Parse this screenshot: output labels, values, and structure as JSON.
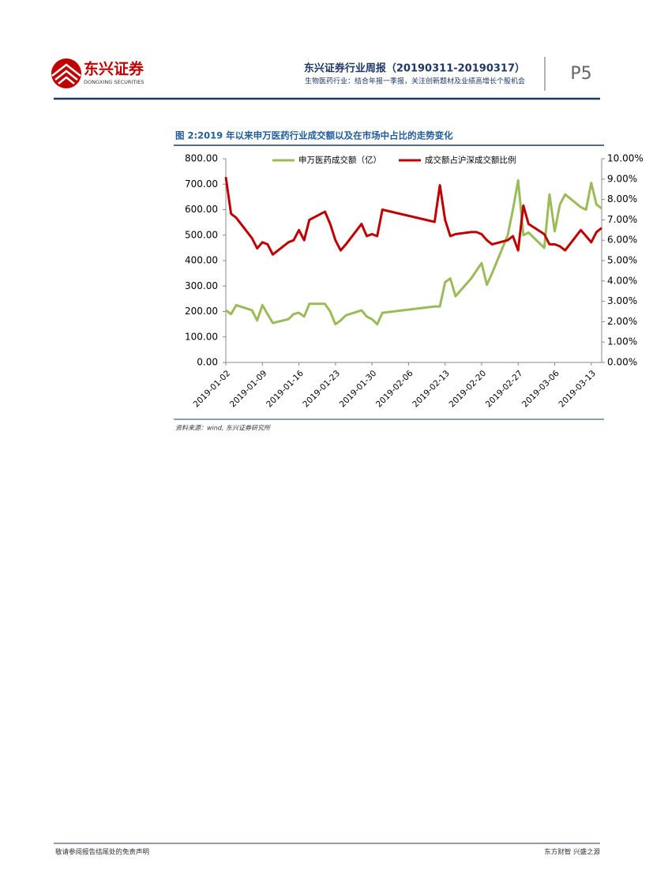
{
  "header": {
    "logo_text": "东兴证券",
    "logo_subtext": "DONGXING SECURITIES",
    "title": "东兴证券行业周报（20190311-20190317）",
    "subtitle": "生物医药行业：结合年报一季报，关注创新题材及业绩高增长个股机会",
    "page": "P5"
  },
  "figure_title": "图 2:2019 年以来申万医药行业成交额以及在市场中占比的走势变化",
  "chart_data": {
    "type": "line",
    "x": [
      "2019-01-02",
      "2019-01-03",
      "2019-01-04",
      "2019-01-07",
      "2019-01-08",
      "2019-01-09",
      "2019-01-10",
      "2019-01-11",
      "2019-01-14",
      "2019-01-15",
      "2019-01-16",
      "2019-01-17",
      "2019-01-18",
      "2019-01-21",
      "2019-01-22",
      "2019-01-23",
      "2019-01-24",
      "2019-01-25",
      "2019-01-28",
      "2019-01-29",
      "2019-01-30",
      "2019-01-31",
      "2019-02-01",
      "2019-02-11",
      "2019-02-12",
      "2019-02-13",
      "2019-02-14",
      "2019-02-15",
      "2019-02-18",
      "2019-02-19",
      "2019-02-20",
      "2019-02-21",
      "2019-02-22",
      "2019-02-25",
      "2019-02-26",
      "2019-02-27",
      "2019-02-28",
      "2019-03-01",
      "2019-03-04",
      "2019-03-05",
      "2019-03-06",
      "2019-03-07",
      "2019-03-08",
      "2019-03-11",
      "2019-03-12",
      "2019-03-13",
      "2019-03-14",
      "2019-03-15"
    ],
    "series": [
      {
        "name": "申万医药成交额（亿）",
        "color": "#9bbb59",
        "values": [
          205,
          190,
          225,
          205,
          165,
          225,
          190,
          155,
          170,
          190,
          195,
          180,
          230,
          230,
          200,
          150,
          165,
          185,
          205,
          180,
          170,
          150,
          195,
          220,
          220,
          315,
          330,
          260,
          330,
          360,
          390,
          305,
          350,
          500,
          600,
          715,
          500,
          510,
          450,
          660,
          515,
          620,
          660,
          610,
          600,
          705,
          620,
          605
        ]
      },
      {
        "name": "成交额占沪深成交额比例",
        "color": "#c00000",
        "axis": "y2",
        "values": [
          9.1,
          7.3,
          7.1,
          6.1,
          5.6,
          5.9,
          5.8,
          5.3,
          5.9,
          6.0,
          6.5,
          6.0,
          7.0,
          7.4,
          6.8,
          6.0,
          5.5,
          5.8,
          6.8,
          6.2,
          6.3,
          6.2,
          7.5,
          6.9,
          8.7,
          7.0,
          6.2,
          6.3,
          6.4,
          6.4,
          6.3,
          6.0,
          5.8,
          6.0,
          6.2,
          5.5,
          7.7,
          6.8,
          6.3,
          5.8,
          5.8,
          5.7,
          5.5,
          6.5,
          6.2,
          5.9,
          6.4,
          6.6
        ]
      }
    ],
    "xlim": [
      "2019-01-02",
      "2019-03-15"
    ],
    "xticks": [
      "2019-01-02",
      "2019-01-09",
      "2019-01-16",
      "2019-01-23",
      "2019-01-30",
      "2019-02-06",
      "2019-02-13",
      "2019-02-20",
      "2019-02-27",
      "2019-03-06",
      "2019-03-13"
    ],
    "ylim": [
      0,
      800
    ],
    "yticks": [
      {
        "value": 0,
        "label": "0.00"
      },
      {
        "value": 100,
        "label": "100.00"
      },
      {
        "value": 200,
        "label": "200.00"
      },
      {
        "value": 300,
        "label": "300.00"
      },
      {
        "value": 400,
        "label": "400.00"
      },
      {
        "value": 500,
        "label": "500.00"
      },
      {
        "value": 600,
        "label": "600.00"
      },
      {
        "value": 700,
        "label": "700.00"
      },
      {
        "value": 800,
        "label": "800.00"
      }
    ],
    "y2lim": [
      0,
      10
    ],
    "y2ticks": [
      {
        "value": 0,
        "label": "0.00%"
      },
      {
        "value": 1,
        "label": "1.00%"
      },
      {
        "value": 2,
        "label": "2.00%"
      },
      {
        "value": 3,
        "label": "3.00%"
      },
      {
        "value": 4,
        "label": "4.00%"
      },
      {
        "value": 5,
        "label": "5.00%"
      },
      {
        "value": 6,
        "label": "6.00%"
      },
      {
        "value": 7,
        "label": "7.00%"
      },
      {
        "value": 8,
        "label": "8.00%"
      },
      {
        "value": 9,
        "label": "9.00%"
      },
      {
        "value": 10,
        "label": "10.00%"
      }
    ],
    "legend": "top"
  },
  "source": "资料来源：wind, 东兴证券研究所",
  "footer": {
    "left": "敬请参阅报告结尾处的免责声明",
    "right": "东方财智 兴盛之源"
  }
}
